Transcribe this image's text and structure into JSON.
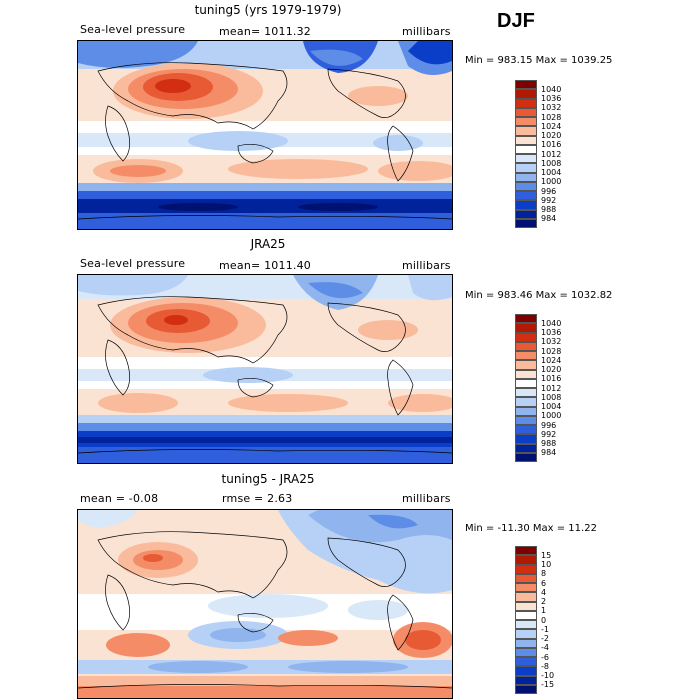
{
  "season": "DJF",
  "panels": [
    {
      "title": "tuning5 (yrs 1979-1979)",
      "left_label": "Sea-level pressure",
      "mid_label": "mean= 1011.32",
      "right_label": "millibars",
      "minmax": "Min = 983.15 Max = 1039.25",
      "colorbar": {
        "labels": [
          "1040",
          "1036",
          "1032",
          "1028",
          "1024",
          "1020",
          "1016",
          "1012",
          "1008",
          "1004",
          "1000",
          "996",
          "992",
          "988",
          "984"
        ],
        "colors": [
          "#800000",
          "#b01a05",
          "#d22e12",
          "#e85a33",
          "#f48d67",
          "#f9bb9b",
          "#fbe3d3",
          "#ffffff",
          "#d9e8f9",
          "#b6d1f5",
          "#8fb4ee",
          "#5e8de8",
          "#2f5fdc",
          "#0a3dc8",
          "#00229b",
          "#001170"
        ]
      }
    },
    {
      "title": "JRA25",
      "left_label": "Sea-level pressure",
      "mid_label": "mean= 1011.40",
      "right_label": "millibars",
      "minmax": "Min = 983.46 Max = 1032.82",
      "colorbar": {
        "labels": [
          "1040",
          "1036",
          "1032",
          "1028",
          "1024",
          "1020",
          "1016",
          "1012",
          "1008",
          "1004",
          "1000",
          "996",
          "992",
          "988",
          "984"
        ],
        "colors": [
          "#800000",
          "#b01a05",
          "#d22e12",
          "#e85a33",
          "#f48d67",
          "#f9bb9b",
          "#fbe3d3",
          "#ffffff",
          "#d9e8f9",
          "#b6d1f5",
          "#8fb4ee",
          "#5e8de8",
          "#2f5fdc",
          "#0a3dc8",
          "#00229b",
          "#001170"
        ]
      }
    },
    {
      "title": "tuning5 - JRA25",
      "left_label": "mean =   -0.08",
      "mid_label": "rmse =    2.63",
      "right_label": "millibars",
      "minmax": "Min = -11.30 Max =  11.22",
      "colorbar": {
        "labels": [
          "15",
          "10",
          "8",
          "6",
          "4",
          "2",
          "1",
          "0",
          "-1",
          "-2",
          "-4",
          "-6",
          "-8",
          "-10",
          "-15"
        ],
        "colors": [
          "#800000",
          "#b01a05",
          "#d22e12",
          "#e85a33",
          "#f48d67",
          "#f9bb9b",
          "#fbe3d3",
          "#ffffff",
          "#d9e8f9",
          "#b6d1f5",
          "#8fb4ee",
          "#5e8de8",
          "#2f5fdc",
          "#0a3dc8",
          "#00229b",
          "#001170"
        ]
      }
    }
  ]
}
